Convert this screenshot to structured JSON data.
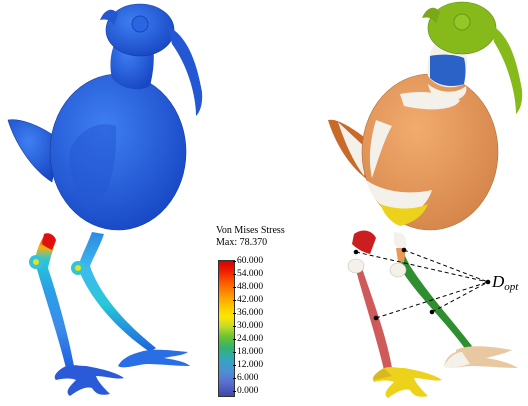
{
  "legend": {
    "title": "Von Mises Stress",
    "max_label": "Max: 78.370",
    "ticks": [
      "60.000",
      "54.000",
      "48.000",
      "42.000",
      "36.000",
      "30.000",
      "24.000",
      "18.000",
      "12.000",
      "6.000",
      "0.000"
    ]
  },
  "annotation": {
    "symbol": "D",
    "subscript": "opt"
  },
  "colors": {
    "stress_low_blue": "#1f5fe0",
    "stress_high_red": "#e01010",
    "segment_green": "#86b91a",
    "segment_orange": "#e8995a",
    "segment_blue": "#2a62c8",
    "segment_yellow": "#ecd21a",
    "segment_red": "#d23a3a",
    "segment_dark_green": "#2e8a2e",
    "segment_tan": "#e8c8a0"
  }
}
